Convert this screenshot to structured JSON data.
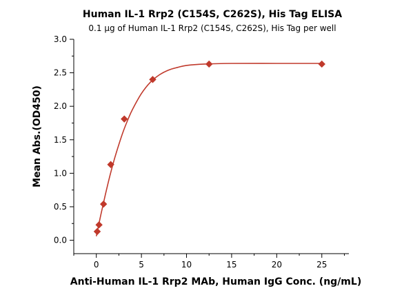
{
  "chart_data": {
    "type": "scatter",
    "title": "Human IL-1 Rrp2 (C154S, C262S), His Tag ELISA",
    "subtitle": "0.1 μg of Human IL-1 Rrp2 (C154S, C262S), His Tag per well",
    "xlabel": "Anti-Human IL-1 Rrp2 MAb, Human IgG Conc. (ng/mL)",
    "ylabel": "Mean Abs.(OD450)",
    "xlim": [
      -2.5,
      28
    ],
    "ylim": [
      -0.2,
      3.0
    ],
    "x_ticks": [
      0,
      5,
      10,
      15,
      20,
      25
    ],
    "x_tick_labels": [
      "0",
      "5",
      "10",
      "15",
      "20",
      "25"
    ],
    "y_ticks": [
      0.0,
      0.5,
      1.0,
      1.5,
      2.0,
      2.5,
      3.0
    ],
    "y_tick_labels": [
      "0.0",
      "0.5",
      "1.0",
      "1.5",
      "2.0",
      "2.5",
      "3.0"
    ],
    "grid": false,
    "legend": "none",
    "series": [
      {
        "marker": "diamond",
        "color": "#c0392b",
        "points": [
          {
            "x": 0.1,
            "y": 0.13
          },
          {
            "x": 0.3,
            "y": 0.23
          },
          {
            "x": 0.8,
            "y": 0.54
          },
          {
            "x": 1.6,
            "y": 1.13
          },
          {
            "x": 3.1,
            "y": 1.81
          },
          {
            "x": 6.25,
            "y": 2.4
          },
          {
            "x": 12.5,
            "y": 2.63
          },
          {
            "x": 25,
            "y": 2.63
          }
        ]
      }
    ],
    "fit_curve": {
      "color": "#c0392b",
      "points": [
        {
          "x": 0,
          "y": 0.06
        },
        {
          "x": 0.5,
          "y": 0.38
        },
        {
          "x": 1,
          "y": 0.68
        },
        {
          "x": 1.5,
          "y": 0.96
        },
        {
          "x": 2,
          "y": 1.21
        },
        {
          "x": 2.5,
          "y": 1.43
        },
        {
          "x": 3,
          "y": 1.63
        },
        {
          "x": 3.5,
          "y": 1.8
        },
        {
          "x": 4,
          "y": 1.95
        },
        {
          "x": 5,
          "y": 2.19
        },
        {
          "x": 6,
          "y": 2.36
        },
        {
          "x": 7,
          "y": 2.47
        },
        {
          "x": 8,
          "y": 2.54
        },
        {
          "x": 9,
          "y": 2.58
        },
        {
          "x": 10,
          "y": 2.61
        },
        {
          "x": 12,
          "y": 2.63
        },
        {
          "x": 15,
          "y": 2.64
        },
        {
          "x": 20,
          "y": 2.64
        },
        {
          "x": 25,
          "y": 2.64
        }
      ]
    }
  }
}
